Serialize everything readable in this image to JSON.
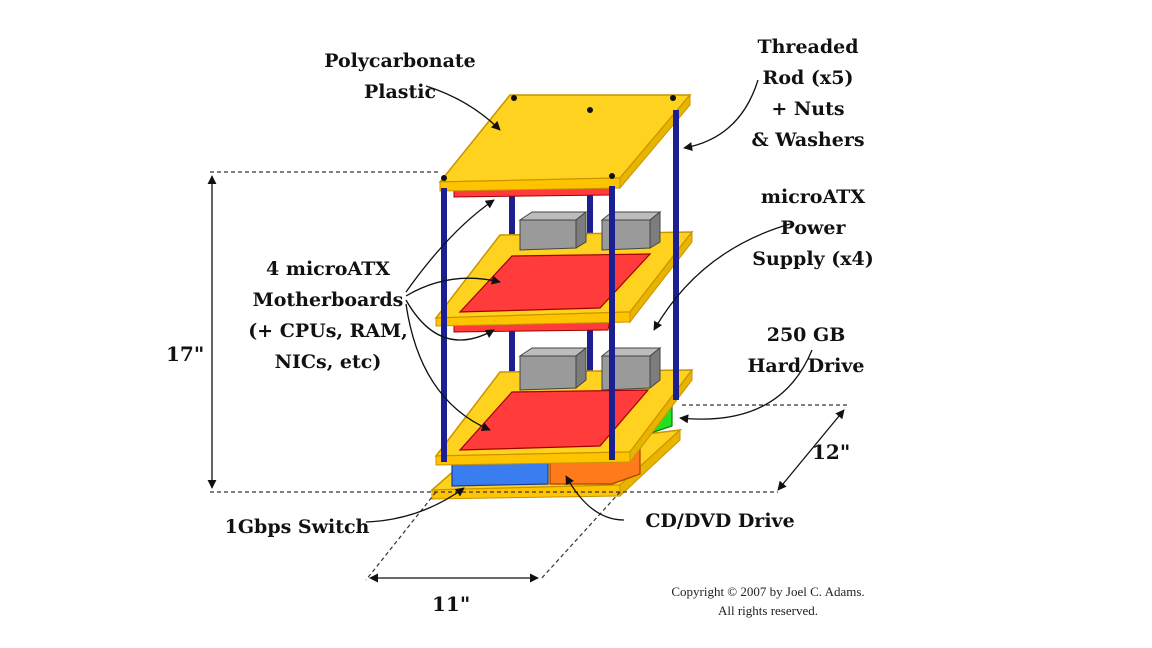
{
  "labels": {
    "polycarbonate": [
      "Polycarbonate",
      "Plastic"
    ],
    "rod": [
      "Threaded",
      "Rod (x5)",
      "+ Nuts",
      "& Washers"
    ],
    "motherboards": [
      "4 microATX",
      "Motherboards",
      "(+ CPUs, RAM,",
      "NICs, etc)"
    ],
    "power_supply": [
      "microATX",
      "Power",
      "Supply (x4)"
    ],
    "hard_drive": [
      "250 GB",
      "Hard Drive"
    ],
    "switch": "1Gbps Switch",
    "cd_dvd": "CD/DVD Drive"
  },
  "dimensions": {
    "height": "17\"",
    "width": "11\"",
    "depth": "12\""
  },
  "copyright": [
    "Copyright © 2007 by Joel C. Adams.",
    "All rights reserved."
  ],
  "colors": {
    "plate": "#ffd21f",
    "plate_edge": "#e0a800",
    "motherboard": "#ff3b3b",
    "rod": "#1c1f8f",
    "power_supply": "#9a9a9a",
    "switch": "#3a7df0",
    "cd_dvd": "#ff7a1a",
    "hard_drive": "#22e022"
  }
}
